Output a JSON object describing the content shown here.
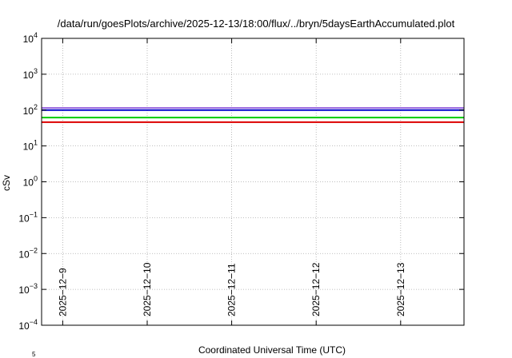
{
  "title": "/data/run/goesPlots/archive/2025-12-13/18:00/flux/../bryn/5daysEarthAccumulated.plot",
  "xlabel": "Coordinated Universal Time (UTC)",
  "ylabel": "cSv",
  "stray_text": "5",
  "chart_data": {
    "type": "line",
    "title": "/data/run/goesPlots/archive/2025-12-13/18:00/flux/../bryn/5daysEarthAccumulated.plot",
    "xlabel": "Coordinated Universal Time (UTC)",
    "ylabel": "cSv",
    "y_scale": "log",
    "ylim": [
      0.0001,
      10000
    ],
    "y_ticks": [
      {
        "value": 0.0001,
        "base": "10",
        "exp": "−4"
      },
      {
        "value": 0.001,
        "base": "10",
        "exp": "−3"
      },
      {
        "value": 0.01,
        "base": "10",
        "exp": "−2"
      },
      {
        "value": 0.1,
        "base": "10",
        "exp": "−1"
      },
      {
        "value": 1,
        "base": "10",
        "exp": "0"
      },
      {
        "value": 10,
        "base": "10",
        "exp": "1"
      },
      {
        "value": 100,
        "base": "10",
        "exp": "2"
      },
      {
        "value": 1000,
        "base": "10",
        "exp": "3"
      },
      {
        "value": 10000,
        "base": "10",
        "exp": "4"
      }
    ],
    "xlim": [
      "2025-12-08T18:00",
      "2025-12-13T18:00"
    ],
    "x_ticks": [
      {
        "date": "2025-12-09T00:00",
        "label": "2025−12−9"
      },
      {
        "date": "2025-12-10T00:00",
        "label": "2025−12−10"
      },
      {
        "date": "2025-12-11T00:00",
        "label": "2025−12−11"
      },
      {
        "date": "2025-12-12T00:00",
        "label": "2025−12−12"
      },
      {
        "date": "2025-12-13T00:00",
        "label": "2025−12−13"
      }
    ],
    "grid": true,
    "series": [
      {
        "color": "#a070e0",
        "x": [
          "2025-12-08T18:00",
          "2025-12-13T18:00"
        ],
        "y": [
          115,
          115
        ]
      },
      {
        "color": "#0000cc",
        "x": [
          "2025-12-08T18:00",
          "2025-12-13T18:00"
        ],
        "y": [
          100,
          100
        ]
      },
      {
        "color": "#00cc00",
        "x": [
          "2025-12-08T18:00",
          "2025-12-13T18:00"
        ],
        "y": [
          62,
          62
        ]
      },
      {
        "color": "#dd0000",
        "x": [
          "2025-12-08T18:00",
          "2025-12-13T18:00"
        ],
        "y": [
          46,
          46
        ]
      }
    ]
  }
}
